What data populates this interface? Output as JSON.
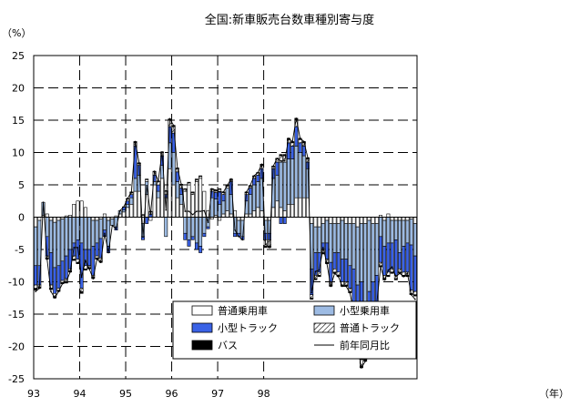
{
  "chart_data": {
    "type": "bar",
    "title": "全国:新車販売台数車種別寄与度",
    "ylabel": "（%）",
    "xlabel": "（年）",
    "ylim": [
      -25,
      25
    ],
    "yticks": [
      "25",
      "20",
      "15",
      "10",
      "5",
      "0",
      "-5",
      "-10",
      "-15",
      "-20",
      "-25"
    ],
    "ytick_values": [
      25,
      20,
      15,
      10,
      5,
      0,
      -5,
      -10,
      -15,
      -20,
      -25
    ],
    "grid": "horizontal dashed every 5%, vertical dashed at each year start",
    "legend_position": "lower-center",
    "year_labels": [
      "93",
      "94",
      "95",
      "96",
      "97",
      "98"
    ],
    "months_start": "1993-01",
    "colors": {
      "普通乗用車": "#ffffff",
      "小型乗用車": "#9dbbe3",
      "小型トラック": "#3a62e6",
      "普通トラック": "hatched",
      "バス": "#000000",
      "前年同月比": "#000000"
    },
    "series": [
      {
        "name": "普通乗用車",
        "values": [
          -1.5,
          -0.5,
          0.3,
          0.5,
          -0.5,
          -0.8,
          -0.5,
          -0.3,
          0.2,
          0.3,
          2.0,
          2.5,
          2.5,
          1.5,
          0.0,
          -0.5,
          -0.5,
          -0.3,
          0.5,
          -0.5,
          -0.3,
          0.2,
          0.5,
          0.8,
          1.5,
          2.0,
          4.0,
          4.0,
          -1.0,
          3.5,
          -0.5,
          5.0,
          3.0,
          6.0,
          3.0,
          7.5,
          5.0,
          3.0,
          2.0,
          4.0,
          5.0,
          3.5,
          5.5,
          6.0,
          4.0,
          1.0,
          -0.3,
          0.3,
          -0.5,
          0.5,
          1.0,
          0.5,
          1.0,
          -0.5,
          -0.5,
          0.5,
          0.5,
          1.0,
          1.5,
          1.0,
          -0.5,
          -0.5,
          1.5,
          2.5,
          1.5,
          1.0,
          2.0,
          2.0,
          3.0,
          3.0,
          3.0,
          3.0,
          -1.0,
          -1.5,
          -1.5,
          -1.0,
          -0.5,
          -1.0,
          -1.0,
          -1.0,
          -0.5,
          -1.0,
          -1.0,
          -1.0,
          -1.5,
          -1.0,
          -1.0,
          -0.5,
          -1.0,
          -1.0,
          0.3,
          -0.5,
          0.5,
          -0.5,
          -0.5,
          -0.5,
          -0.5,
          -0.5,
          -0.3,
          -1.0
        ]
      },
      {
        "name": "小型乗用車",
        "values": [
          -6.0,
          -7.0,
          2.0,
          -3.0,
          -5.0,
          -7.0,
          -7.0,
          -6.5,
          -6.0,
          -5.0,
          -4.0,
          -3.5,
          -4.0,
          -5.0,
          -5.0,
          -4.0,
          -3.5,
          -3.0,
          -2.0,
          -4.0,
          -1.0,
          -1.5,
          0.5,
          0.3,
          0.5,
          1.0,
          2.0,
          2.5,
          -2.0,
          2.0,
          0.0,
          0.5,
          1.0,
          2.0,
          -3.0,
          4.0,
          5.0,
          2.5,
          1.5,
          -2.5,
          -3.5,
          -3.0,
          -4.0,
          -4.5,
          -2.5,
          -1.5,
          3.0,
          2.5,
          2.0,
          2.0,
          3.5,
          3.0,
          -2.5,
          -2.0,
          -2.5,
          2.0,
          3.0,
          4.0,
          4.0,
          5.0,
          -2.0,
          -2.0,
          4.5,
          4.0,
          7.0,
          7.5,
          7.0,
          7.0,
          8.0,
          7.0,
          6.5,
          4.5,
          -7.0,
          -4.0,
          -4.0,
          -3.0,
          -3.5,
          -6.0,
          -4.5,
          -4.5,
          -6.0,
          -5.5,
          -6.5,
          -7.0,
          -9.0,
          -9.0,
          -12.0,
          -11.0,
          -9.0,
          -8.0,
          -3.0,
          -4.0,
          -4.0,
          -3.5,
          -3.0,
          -5.0,
          -4.0,
          -3.5,
          -4.0,
          -5.0
        ]
      },
      {
        "name": "小型トラック",
        "values": [
          -3.0,
          -3.0,
          0.0,
          -3.0,
          -5.0,
          -4.0,
          -3.5,
          -3.0,
          -3.5,
          -3.0,
          -2.0,
          -3.0,
          -7.0,
          -2.5,
          -2.5,
          -4.5,
          -2.0,
          -3.0,
          -1.0,
          -1.0,
          0.0,
          -0.5,
          0.0,
          0.5,
          0.5,
          0.5,
          5.0,
          1.5,
          -0.5,
          -1.0,
          0.5,
          1.0,
          1.0,
          1.5,
          0.5,
          2.5,
          3.0,
          1.5,
          1.0,
          -1.0,
          -1.0,
          -0.5,
          -1.0,
          -1.0,
          -0.5,
          -0.3,
          1.0,
          1.0,
          2.0,
          1.0,
          0.0,
          2.0,
          -0.5,
          -0.5,
          -0.5,
          1.0,
          1.0,
          1.0,
          1.0,
          1.5,
          -1.0,
          -1.0,
          1.5,
          2.0,
          -1.0,
          -1.0,
          2.5,
          2.0,
          3.0,
          1.5,
          1.5,
          1.0,
          -4.0,
          -3.5,
          -3.0,
          -1.0,
          -2.5,
          -3.0,
          -2.5,
          -3.0,
          -3.5,
          -3.5,
          -3.5,
          -6.0,
          -8.5,
          -12.0,
          -8.0,
          -6.0,
          -5.5,
          -4.0,
          -4.0,
          -4.5,
          -4.5,
          -4.0,
          -5.5,
          -2.5,
          -4.0,
          -4.5,
          -7.0,
          -5.5
        ]
      },
      {
        "name": "普通トラック",
        "values": [
          -0.5,
          -0.3,
          0.0,
          -0.3,
          -0.5,
          -0.5,
          -0.3,
          -0.3,
          -0.5,
          -0.3,
          -0.5,
          -0.5,
          -0.5,
          -0.5,
          -0.3,
          -0.3,
          -0.3,
          -0.5,
          0.0,
          0.0,
          0.0,
          0.0,
          0.0,
          0.0,
          0.3,
          0.3,
          0.5,
          0.3,
          0.3,
          0.3,
          0.3,
          0.5,
          0.5,
          0.5,
          0.5,
          1.0,
          1.0,
          0.5,
          0.5,
          0.3,
          0.3,
          0.3,
          0.3,
          0.3,
          0.0,
          0.0,
          0.3,
          0.3,
          0.3,
          0.3,
          0.3,
          0.3,
          0.0,
          0.0,
          0.0,
          0.3,
          0.3,
          0.3,
          0.3,
          0.5,
          -1.0,
          -1.0,
          0.3,
          0.5,
          1.0,
          1.0,
          0.5,
          0.5,
          1.0,
          0.5,
          0.5,
          0.5,
          -0.5,
          -0.5,
          -0.5,
          -0.5,
          -0.5,
          -0.5,
          -0.5,
          -0.5,
          -0.5,
          -0.5,
          -0.5,
          -0.5,
          -1.0,
          -1.0,
          -1.0,
          -1.0,
          -1.0,
          -1.0,
          -0.5,
          -0.5,
          -0.5,
          -0.5,
          -0.5,
          -0.5,
          -0.5,
          -0.5,
          -0.5,
          -0.5
        ]
      },
      {
        "name": "バス",
        "values": [
          -0.3,
          -0.2,
          0.0,
          -0.2,
          -0.2,
          -0.2,
          -0.2,
          -0.2,
          -0.2,
          -0.2,
          -0.2,
          -0.2,
          -0.3,
          -0.2,
          -0.2,
          -0.2,
          -0.2,
          -0.2,
          0.0,
          0.0,
          0.0,
          0.0,
          0.0,
          0.0,
          0.1,
          0.1,
          0.2,
          0.1,
          0.1,
          0.1,
          0.1,
          0.1,
          0.1,
          0.1,
          0.1,
          0.2,
          0.2,
          0.1,
          0.1,
          0.1,
          0.1,
          0.1,
          0.1,
          0.1,
          0.0,
          0.0,
          0.1,
          0.1,
          0.1,
          0.1,
          0.1,
          0.1,
          0.0,
          0.0,
          0.0,
          0.1,
          0.1,
          0.1,
          0.1,
          0.2,
          -0.2,
          -0.2,
          0.1,
          0.1,
          0.2,
          0.2,
          0.2,
          0.2,
          0.3,
          0.2,
          0.2,
          0.2,
          -0.2,
          -0.2,
          -0.2,
          -0.2,
          -0.2,
          -0.2,
          -0.2,
          -0.2,
          -0.2,
          -0.2,
          -0.2,
          -0.2,
          -0.3,
          -0.3,
          -0.3,
          -0.3,
          -0.3,
          -0.3,
          -0.2,
          -0.2,
          -0.2,
          -0.2,
          -0.2,
          -0.2,
          -0.2,
          -0.2,
          -0.2,
          -0.2
        ]
      },
      {
        "name": "前年同月比",
        "values": [
          -11.5,
          -11.0,
          2.3,
          -6.5,
          -11.5,
          -12.5,
          -11.5,
          -10.3,
          -10.0,
          -8.5,
          -4.7,
          -4.7,
          -9.3,
          -6.7,
          -8.0,
          -9.5,
          -6.5,
          -7.0,
          -2.5,
          -5.5,
          -1.3,
          -1.8,
          1.0,
          1.6,
          2.9,
          3.9,
          11.7,
          8.4,
          -3.1,
          4.9,
          0.4,
          7.1,
          5.6,
          10.1,
          1.1,
          15.2,
          14.2,
          7.6,
          5.1,
          0.9,
          0.9,
          0.4,
          0.9,
          0.9,
          1.0,
          -0.8,
          4.4,
          4.2,
          3.9,
          3.9,
          4.9,
          5.9,
          -2.0,
          -3.0,
          -3.5,
          3.9,
          4.9,
          6.4,
          6.9,
          8.2,
          -4.2,
          -4.7,
          7.9,
          9.1,
          8.7,
          8.7,
          12.2,
          11.7,
          15.3,
          12.2,
          11.7,
          9.2,
          -11.7,
          -8.4,
          -8.2,
          -4.7,
          -7.2,
          -10.7,
          -8.7,
          -9.2,
          -10.7,
          -10.7,
          -11.7,
          -14.7,
          -20.3,
          -23.3,
          -22.3,
          -18.8,
          -16.8,
          -13.3,
          -7.7,
          -9.7,
          -8.2,
          -7.7,
          -9.2,
          -8.7,
          -9.2,
          -8.7,
          -12.0,
          -12.7
        ]
      }
    ]
  }
}
